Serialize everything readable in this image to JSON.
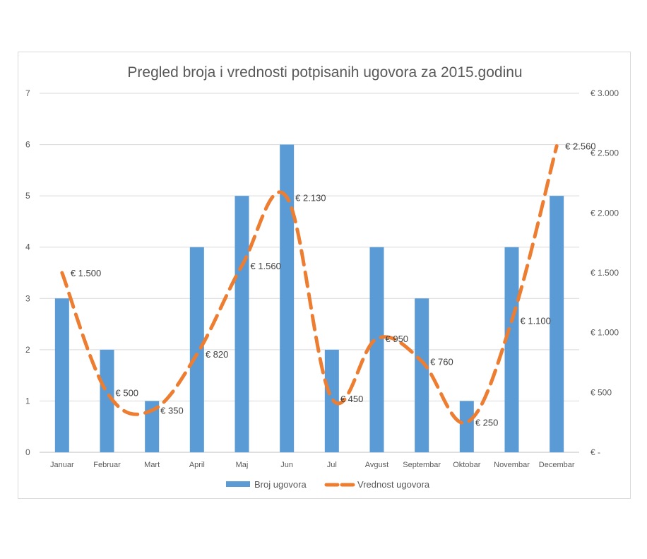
{
  "chart_data": {
    "type": "bar",
    "title": "Pregled broja i vrednosti potpisanih ugovora za 2015.godinu",
    "categories": [
      "Januar",
      "Februar",
      "Mart",
      "April",
      "Maj",
      "Jun",
      "Jul",
      "Avgust",
      "Septembar",
      "Oktobar",
      "Novembar",
      "Decembar"
    ],
    "series": [
      {
        "name": "Broj ugovora",
        "type": "bar",
        "axis": "left",
        "color": "#5b9bd5",
        "values": [
          3,
          2,
          1,
          4,
          5,
          6,
          2,
          4,
          3,
          1,
          4,
          5
        ]
      },
      {
        "name": "Vrednost ugovora",
        "type": "line",
        "style": "dashed",
        "axis": "right",
        "color": "#ed7d31",
        "values": [
          1500,
          500,
          350,
          820,
          1560,
          2130,
          450,
          950,
          760,
          250,
          1100,
          2560
        ],
        "data_labels": [
          "€ 1.500",
          "€ 500",
          "€ 350",
          "€ 820",
          "€ 1.560",
          "€ 2.130",
          "€ 450",
          "€ 950",
          "€ 760",
          "€ 250",
          "€ 1.100",
          "€ 2.560"
        ]
      }
    ],
    "y_left": {
      "ylim": [
        0,
        7
      ],
      "ticks": [
        0,
        1,
        2,
        3,
        4,
        5,
        6,
        7
      ],
      "tick_labels": [
        "0",
        "1",
        "2",
        "3",
        "4",
        "5",
        "6",
        "7"
      ]
    },
    "y_right": {
      "ylim": [
        0,
        3000
      ],
      "ticks": [
        0,
        500,
        1000,
        1500,
        2000,
        2500,
        3000
      ],
      "tick_labels": [
        "€ -",
        "€ 500",
        "€ 1.000",
        "€ 1.500",
        "€ 2.000",
        "€ 2.500",
        "€ 3.000"
      ]
    },
    "xlabel": "",
    "ylabel": "",
    "grid": true,
    "legend_position": "bottom"
  }
}
